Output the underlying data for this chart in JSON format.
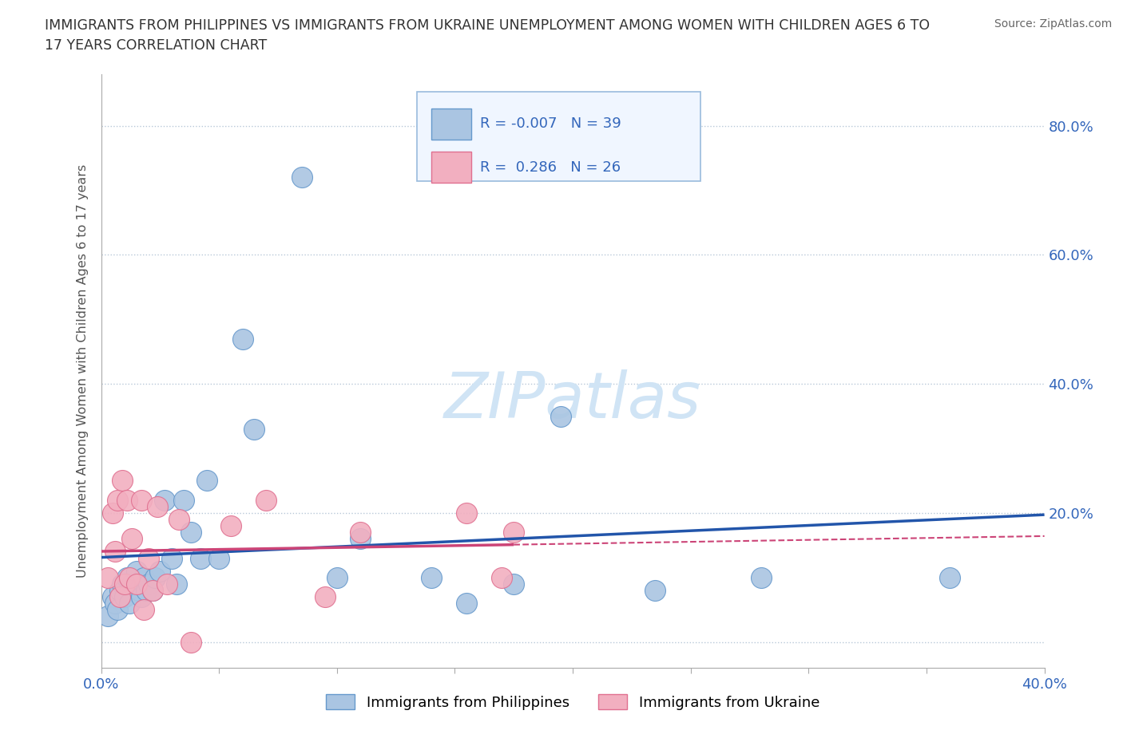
{
  "title_line1": "IMMIGRANTS FROM PHILIPPINES VS IMMIGRANTS FROM UKRAINE UNEMPLOYMENT AMONG WOMEN WITH CHILDREN AGES 6 TO",
  "title_line2": "17 YEARS CORRELATION CHART",
  "source": "Source: ZipAtlas.com",
  "ylabel": "Unemployment Among Women with Children Ages 6 to 17 years",
  "xlim": [
    0.0,
    0.4
  ],
  "ylim": [
    -0.04,
    0.88
  ],
  "ytick_positions": [
    0.0,
    0.2,
    0.4,
    0.6,
    0.8
  ],
  "xtick_positions": [
    0.0,
    0.05,
    0.1,
    0.15,
    0.2,
    0.25,
    0.3,
    0.35,
    0.4
  ],
  "xtick_labels": [
    "0.0%",
    "",
    "",
    "",
    "",
    "",
    "",
    "",
    "40.0%"
  ],
  "right_ytick_labels": [
    "",
    "20.0%",
    "40.0%",
    "60.0%",
    "80.0%"
  ],
  "philippines_color": "#aac5e2",
  "philippines_edge_color": "#6699cc",
  "ukraine_color": "#f2afc0",
  "ukraine_edge_color": "#e07090",
  "philippines_line_color": "#2255aa",
  "ukraine_line_color": "#cc4477",
  "label_color": "#3366bb",
  "background_color": "#ffffff",
  "watermark_text": "ZIPatlas",
  "watermark_color": "#d0e4f5",
  "philippines_x": [
    0.003,
    0.005,
    0.006,
    0.007,
    0.008,
    0.009,
    0.01,
    0.011,
    0.012,
    0.013,
    0.015,
    0.016,
    0.017,
    0.018,
    0.019,
    0.02,
    0.022,
    0.023,
    0.025,
    0.027,
    0.03,
    0.032,
    0.035,
    0.038,
    0.042,
    0.045,
    0.05,
    0.06,
    0.065,
    0.085,
    0.1,
    0.11,
    0.14,
    0.155,
    0.175,
    0.195,
    0.235,
    0.28,
    0.36
  ],
  "philippines_y": [
    0.04,
    0.07,
    0.06,
    0.05,
    0.08,
    0.09,
    0.07,
    0.1,
    0.06,
    0.09,
    0.11,
    0.08,
    0.07,
    0.1,
    0.08,
    0.09,
    0.08,
    0.1,
    0.11,
    0.22,
    0.13,
    0.09,
    0.22,
    0.17,
    0.13,
    0.25,
    0.13,
    0.47,
    0.33,
    0.72,
    0.1,
    0.16,
    0.1,
    0.06,
    0.09,
    0.35,
    0.08,
    0.1,
    0.1
  ],
  "ukraine_x": [
    0.003,
    0.005,
    0.006,
    0.007,
    0.008,
    0.009,
    0.01,
    0.011,
    0.012,
    0.013,
    0.015,
    0.017,
    0.018,
    0.02,
    0.022,
    0.024,
    0.028,
    0.033,
    0.038,
    0.055,
    0.07,
    0.095,
    0.11,
    0.155,
    0.17,
    0.175
  ],
  "ukraine_y": [
    0.1,
    0.2,
    0.14,
    0.22,
    0.07,
    0.25,
    0.09,
    0.22,
    0.1,
    0.16,
    0.09,
    0.22,
    0.05,
    0.13,
    0.08,
    0.21,
    0.09,
    0.19,
    0.0,
    0.18,
    0.22,
    0.07,
    0.17,
    0.2,
    0.1,
    0.17
  ]
}
